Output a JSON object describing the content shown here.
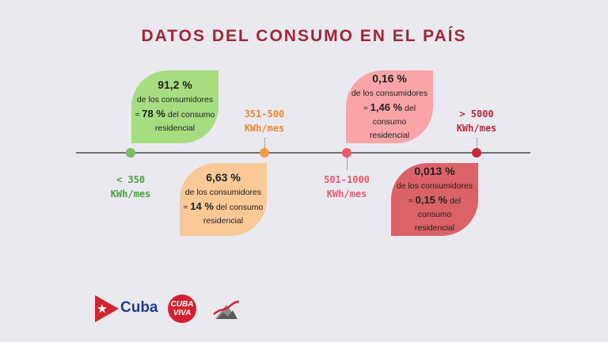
{
  "title": "DATOS DEL CONSUMO EN EL PAÍS",
  "ranges": [
    {
      "range": "< 350",
      "unit": "KWh/mes",
      "color": "#4aa33c"
    },
    {
      "range": "351-500",
      "unit": "KWh/mes",
      "color": "#f08a2c"
    },
    {
      "range": "501-1000",
      "unit": "KWh/mes",
      "color": "#ef5a68"
    },
    {
      "range": "> 5000",
      "unit": "KWh/mes",
      "color": "#c5283b"
    }
  ],
  "cards": [
    {
      "pct": "91,2 %",
      "line1": "de los consumidores",
      "approx": "≈",
      "value": "78 %",
      "line2": "del consumo",
      "line3": "residencial",
      "color": "#a6dd80"
    },
    {
      "pct": "6,63 %",
      "line1": "de los consumidores",
      "approx": "≈",
      "value": "14 %",
      "line2": "del consumo",
      "line3": "residencial",
      "color": "#fbc995"
    },
    {
      "pct": "0,16 %",
      "line1": "de los consumidores",
      "approx": "≈",
      "value": "1,46 %",
      "line2": "del consumo",
      "line3": "residencial",
      "color": "#f9a4a7"
    },
    {
      "pct": "0,013 %",
      "line1": "de los consumidores",
      "approx": "≈",
      "value": "0,15 %",
      "line2": "del consumo",
      "line3": "residencial",
      "color": "#db6367"
    }
  ],
  "logos": {
    "cuba": "Cuba",
    "cubaviva_top": "CUBA",
    "cubaviva_bottom": "VIVA"
  }
}
